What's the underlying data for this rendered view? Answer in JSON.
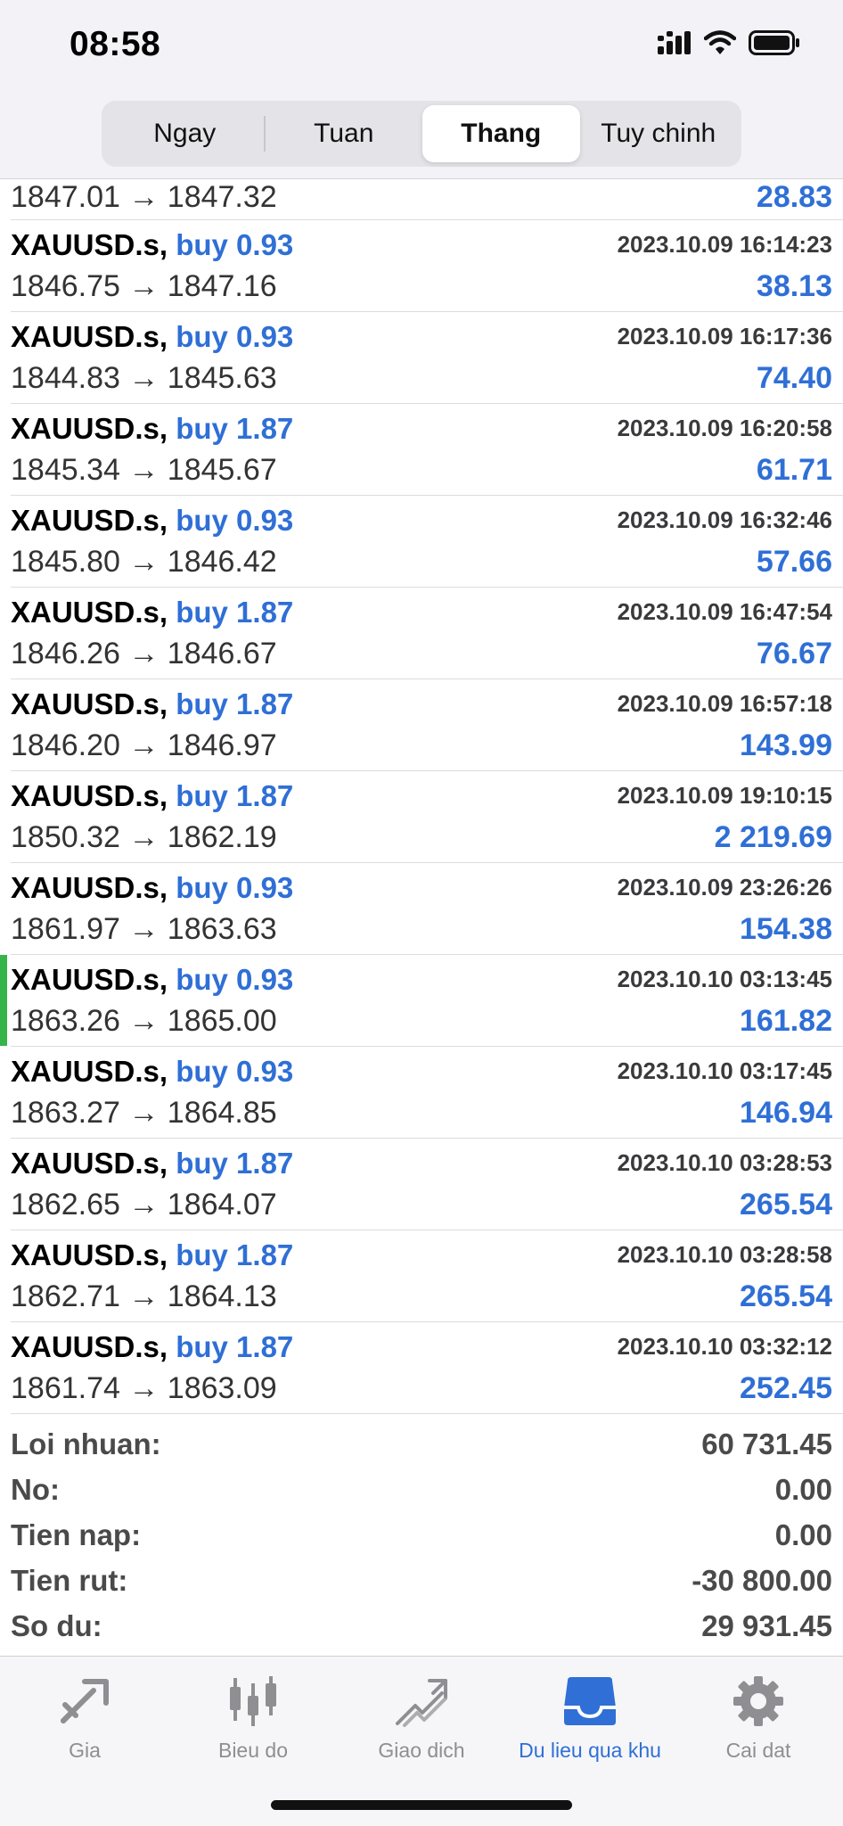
{
  "status_bar": {
    "time": "08:58",
    "icons": [
      "cellular-icon",
      "wifi-icon",
      "battery-icon"
    ]
  },
  "period_tabs": [
    {
      "label": "Ngay",
      "active": false
    },
    {
      "label": "Tuan",
      "active": false
    },
    {
      "label": "Thang",
      "active": true
    },
    {
      "label": "Tuy chinh",
      "active": false
    }
  ],
  "partial_row": {
    "prices": "1847.01 → 1847.32",
    "profit": "28.83"
  },
  "trades": [
    {
      "symbol": "XAUUSD.s,",
      "side": "buy 0.93",
      "time": "2023.10.09 16:14:23",
      "prices": "1846.75 → 1847.16",
      "profit": "38.13"
    },
    {
      "symbol": "XAUUSD.s,",
      "side": "buy 0.93",
      "time": "2023.10.09 16:17:36",
      "prices": "1844.83 → 1845.63",
      "profit": "74.40"
    },
    {
      "symbol": "XAUUSD.s,",
      "side": "buy 1.87",
      "time": "2023.10.09 16:20:58",
      "prices": "1845.34 → 1845.67",
      "profit": "61.71"
    },
    {
      "symbol": "XAUUSD.s,",
      "side": "buy 0.93",
      "time": "2023.10.09 16:32:46",
      "prices": "1845.80 → 1846.42",
      "profit": "57.66"
    },
    {
      "symbol": "XAUUSD.s,",
      "side": "buy 1.87",
      "time": "2023.10.09 16:47:54",
      "prices": "1846.26 → 1846.67",
      "profit": "76.67"
    },
    {
      "symbol": "XAUUSD.s,",
      "side": "buy 1.87",
      "time": "2023.10.09 16:57:18",
      "prices": "1846.20 → 1846.97",
      "profit": "143.99"
    },
    {
      "symbol": "XAUUSD.s,",
      "side": "buy 1.87",
      "time": "2023.10.09 19:10:15",
      "prices": "1850.32 → 1862.19",
      "profit": "2 219.69"
    },
    {
      "symbol": "XAUUSD.s,",
      "side": "buy 0.93",
      "time": "2023.10.09 23:26:26",
      "prices": "1861.97 → 1863.63",
      "profit": "154.38"
    },
    {
      "symbol": "XAUUSD.s,",
      "side": "buy 0.93",
      "time": "2023.10.10 03:13:45",
      "prices": "1863.26 → 1865.00",
      "profit": "161.82",
      "highlight": true
    },
    {
      "symbol": "XAUUSD.s,",
      "side": "buy 0.93",
      "time": "2023.10.10 03:17:45",
      "prices": "1863.27 → 1864.85",
      "profit": "146.94"
    },
    {
      "symbol": "XAUUSD.s,",
      "side": "buy 1.87",
      "time": "2023.10.10 03:28:53",
      "prices": "1862.65 → 1864.07",
      "profit": "265.54"
    },
    {
      "symbol": "XAUUSD.s,",
      "side": "buy 1.87",
      "time": "2023.10.10 03:28:58",
      "prices": "1862.71 → 1864.13",
      "profit": "265.54"
    },
    {
      "symbol": "XAUUSD.s,",
      "side": "buy 1.87",
      "time": "2023.10.10 03:32:12",
      "prices": "1861.74 → 1863.09",
      "profit": "252.45"
    }
  ],
  "summary": [
    {
      "label": "Loi nhuan:",
      "value": "60 731.45"
    },
    {
      "label": "No:",
      "value": "0.00"
    },
    {
      "label": "Tien nap:",
      "value": "0.00"
    },
    {
      "label": "Tien rut:",
      "value": "-30 800.00"
    },
    {
      "label": "So du:",
      "value": "29 931.45"
    }
  ],
  "tabbar": [
    {
      "label": "Gia",
      "icon": "quotes-icon",
      "active": false
    },
    {
      "label": "Bieu do",
      "icon": "chart-icon",
      "active": false
    },
    {
      "label": "Giao dich",
      "icon": "trade-icon",
      "active": false
    },
    {
      "label": "Du lieu qua khu",
      "icon": "history-icon",
      "active": true
    },
    {
      "label": "Cai dat",
      "icon": "settings-icon",
      "active": false
    }
  ],
  "colors": {
    "accent": "#2f6fd6",
    "highlight": "#35b44a",
    "label_gray": "#4a4a4a"
  }
}
